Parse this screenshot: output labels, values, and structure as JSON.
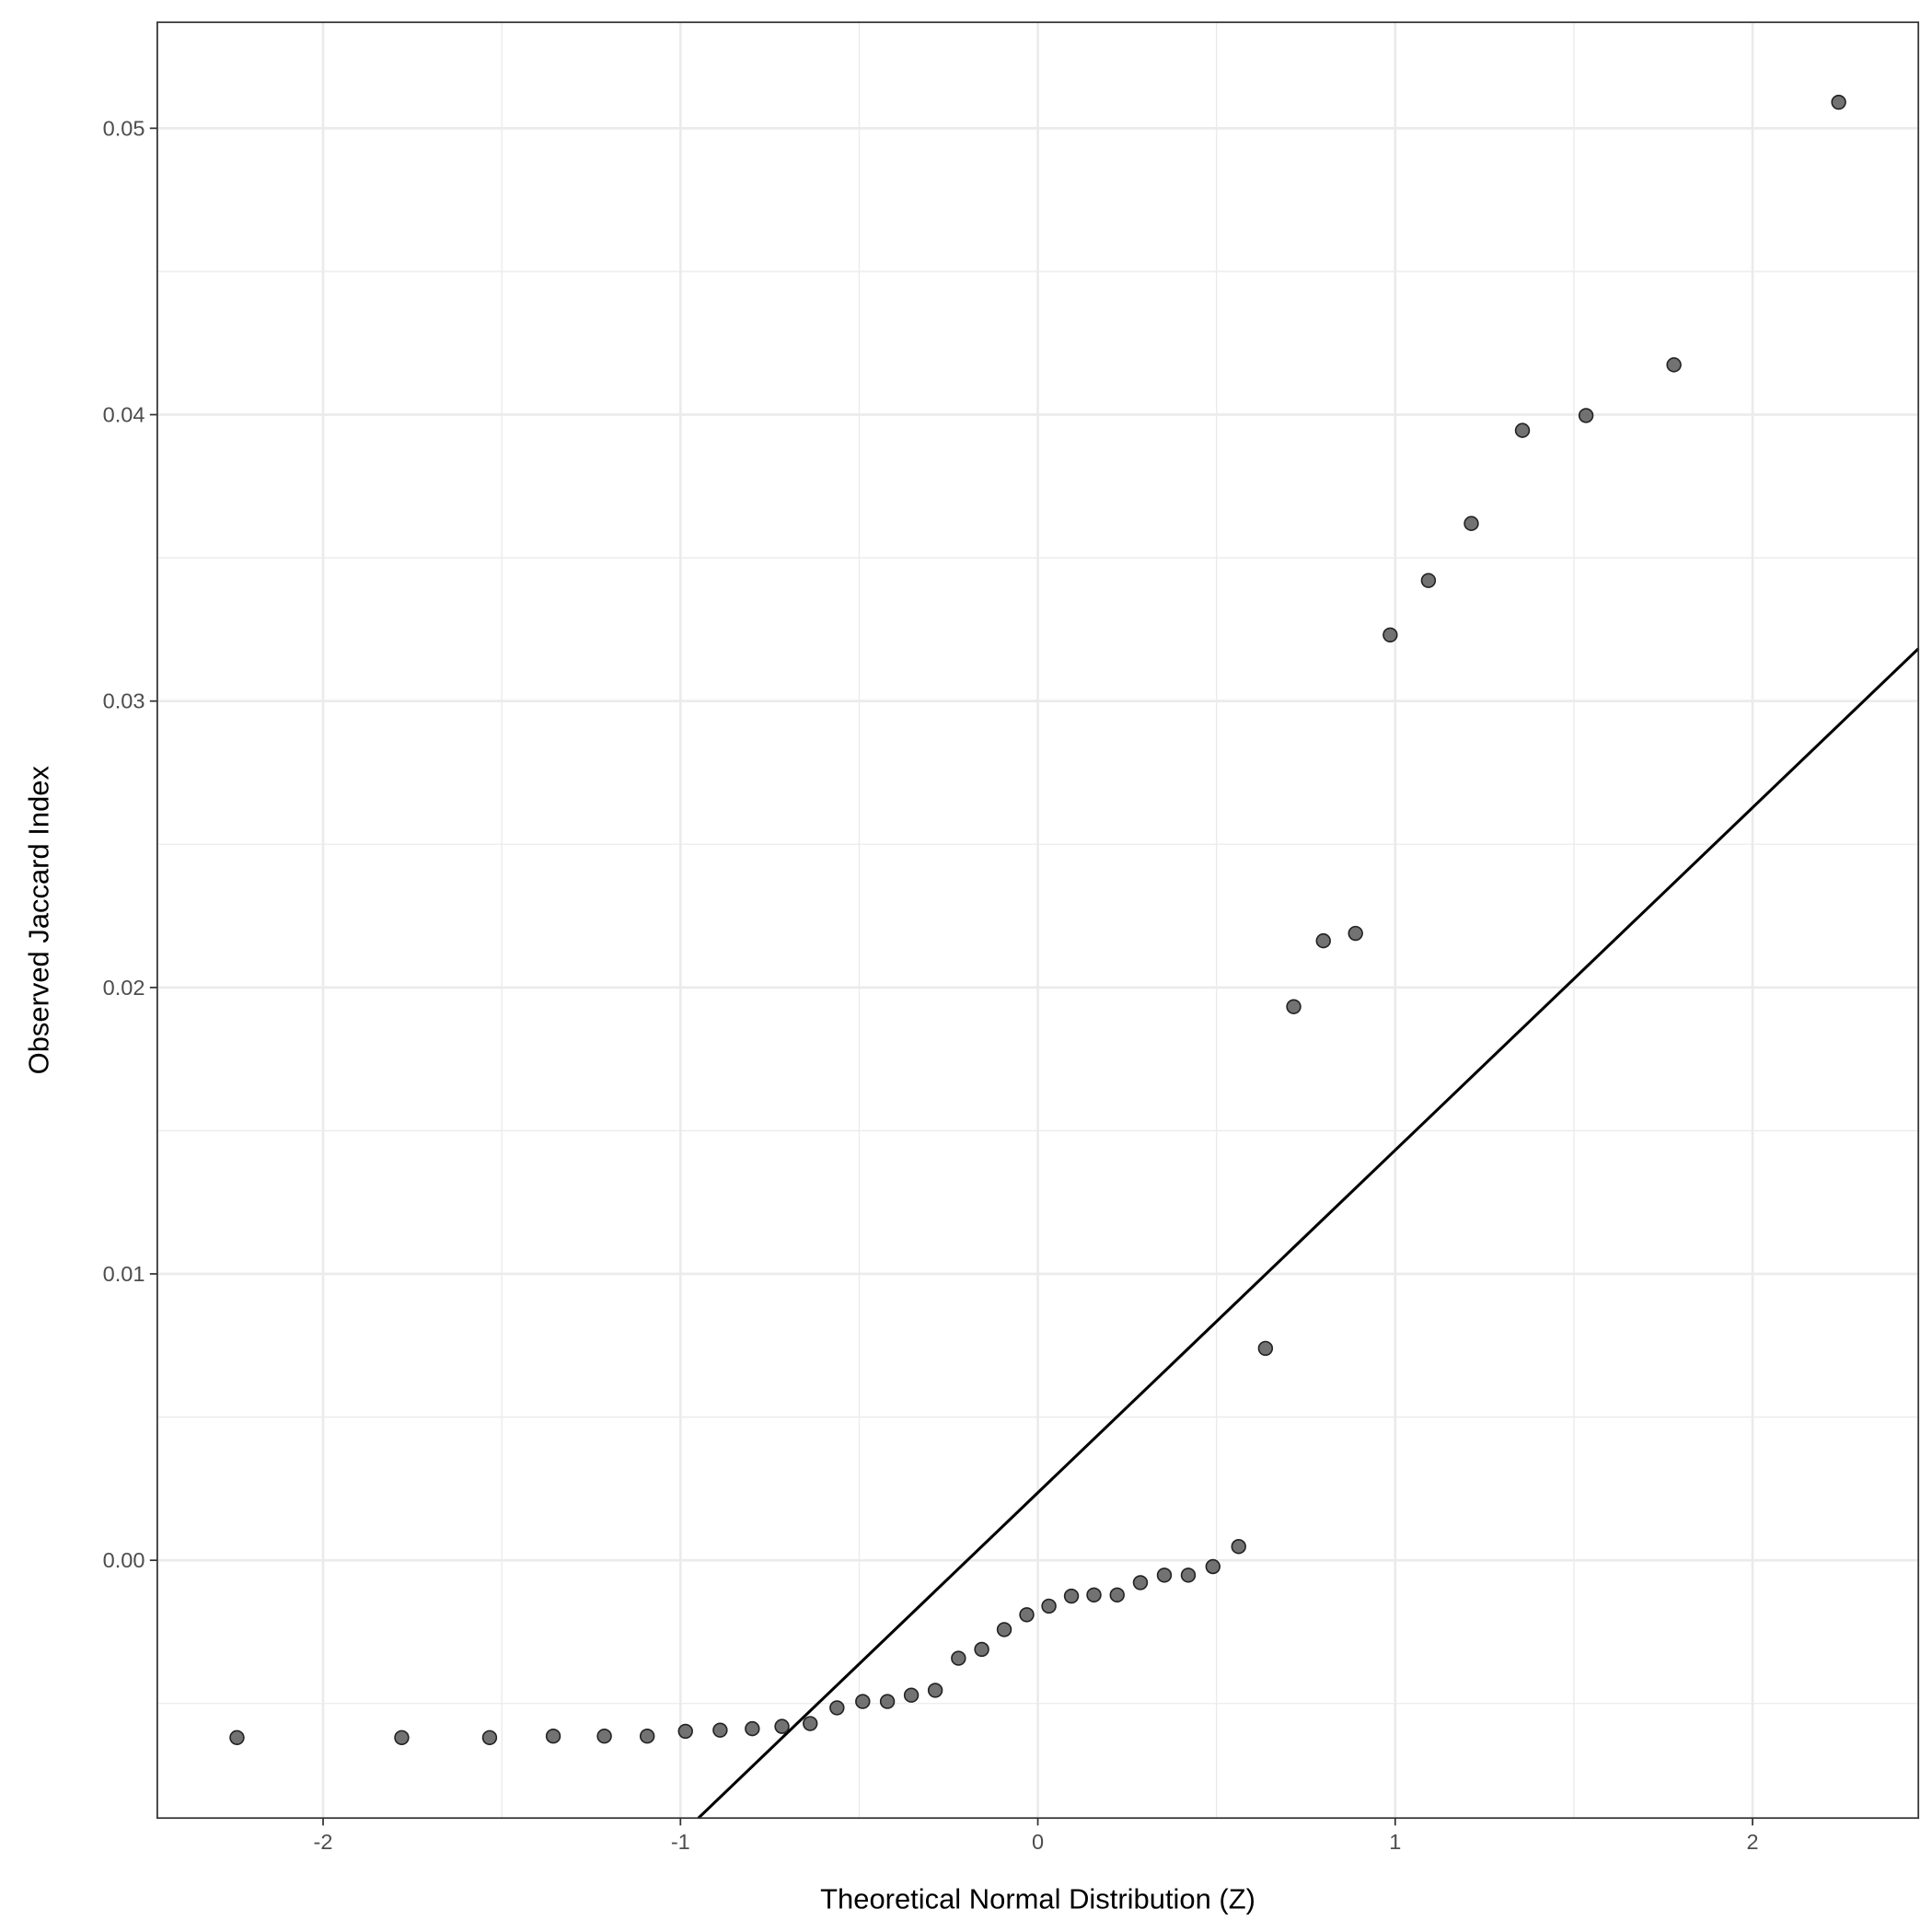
{
  "chart_data": {
    "type": "scatter",
    "title": "",
    "xlabel": "Theoretical Normal Distribution (Z)",
    "ylabel": "Observed Jaccard Index",
    "xlim": [
      -2.464,
      2.464
    ],
    "ylim": [
      -0.009,
      0.0537
    ],
    "x_ticks": [
      -2,
      -1,
      0,
      1,
      2
    ],
    "x_tick_labels": [
      "-2",
      "-1",
      "0",
      "1",
      "2"
    ],
    "y_ticks": [
      0.0,
      0.01,
      0.02,
      0.03,
      0.04,
      0.05
    ],
    "y_tick_labels": [
      "0.00",
      "0.01",
      "0.02",
      "0.03",
      "0.04",
      "0.05"
    ],
    "grid": true,
    "theme": "bw",
    "point_color": "#595959",
    "line_color": "#000000",
    "reference_line": {
      "slope": 0.01196,
      "intercept": 0.00236
    },
    "points": [
      [
        -2.241,
        -0.00619
      ],
      [
        -1.78,
        -0.00619
      ],
      [
        -1.534,
        -0.00619
      ],
      [
        -1.356,
        -0.00614
      ],
      [
        -1.213,
        -0.00614
      ],
      [
        -1.093,
        -0.00614
      ],
      [
        -0.986,
        -0.00597
      ],
      [
        -0.889,
        -0.00593
      ],
      [
        -0.799,
        -0.00588
      ],
      [
        -0.716,
        -0.0058
      ],
      [
        -0.637,
        -0.0057
      ],
      [
        -0.562,
        -0.00515
      ],
      [
        -0.49,
        -0.00493
      ],
      [
        -0.421,
        -0.00493
      ],
      [
        -0.354,
        -0.00471
      ],
      [
        -0.287,
        -0.00454
      ],
      [
        -0.222,
        -0.00342
      ],
      [
        -0.157,
        -0.00311
      ],
      [
        -0.094,
        -0.00242
      ],
      [
        -0.031,
        -0.0019
      ],
      [
        0.031,
        -0.0016
      ],
      [
        0.094,
        -0.00125
      ],
      [
        0.157,
        -0.00121
      ],
      [
        0.222,
        -0.00121
      ],
      [
        0.287,
        -0.00078
      ],
      [
        0.354,
        -0.00052
      ],
      [
        0.421,
        -0.00052
      ],
      [
        0.49,
        -0.00022
      ],
      [
        0.562,
        0.00048
      ],
      [
        0.637,
        0.0074
      ],
      [
        0.716,
        0.01933
      ],
      [
        0.799,
        0.02163
      ],
      [
        0.889,
        0.02189
      ],
      [
        0.986,
        0.03231
      ],
      [
        1.093,
        0.03421
      ],
      [
        1.213,
        0.0362
      ],
      [
        1.356,
        0.03945
      ],
      [
        1.534,
        0.03997
      ],
      [
        1.78,
        0.04174
      ],
      [
        2.241,
        0.05091
      ]
    ]
  }
}
